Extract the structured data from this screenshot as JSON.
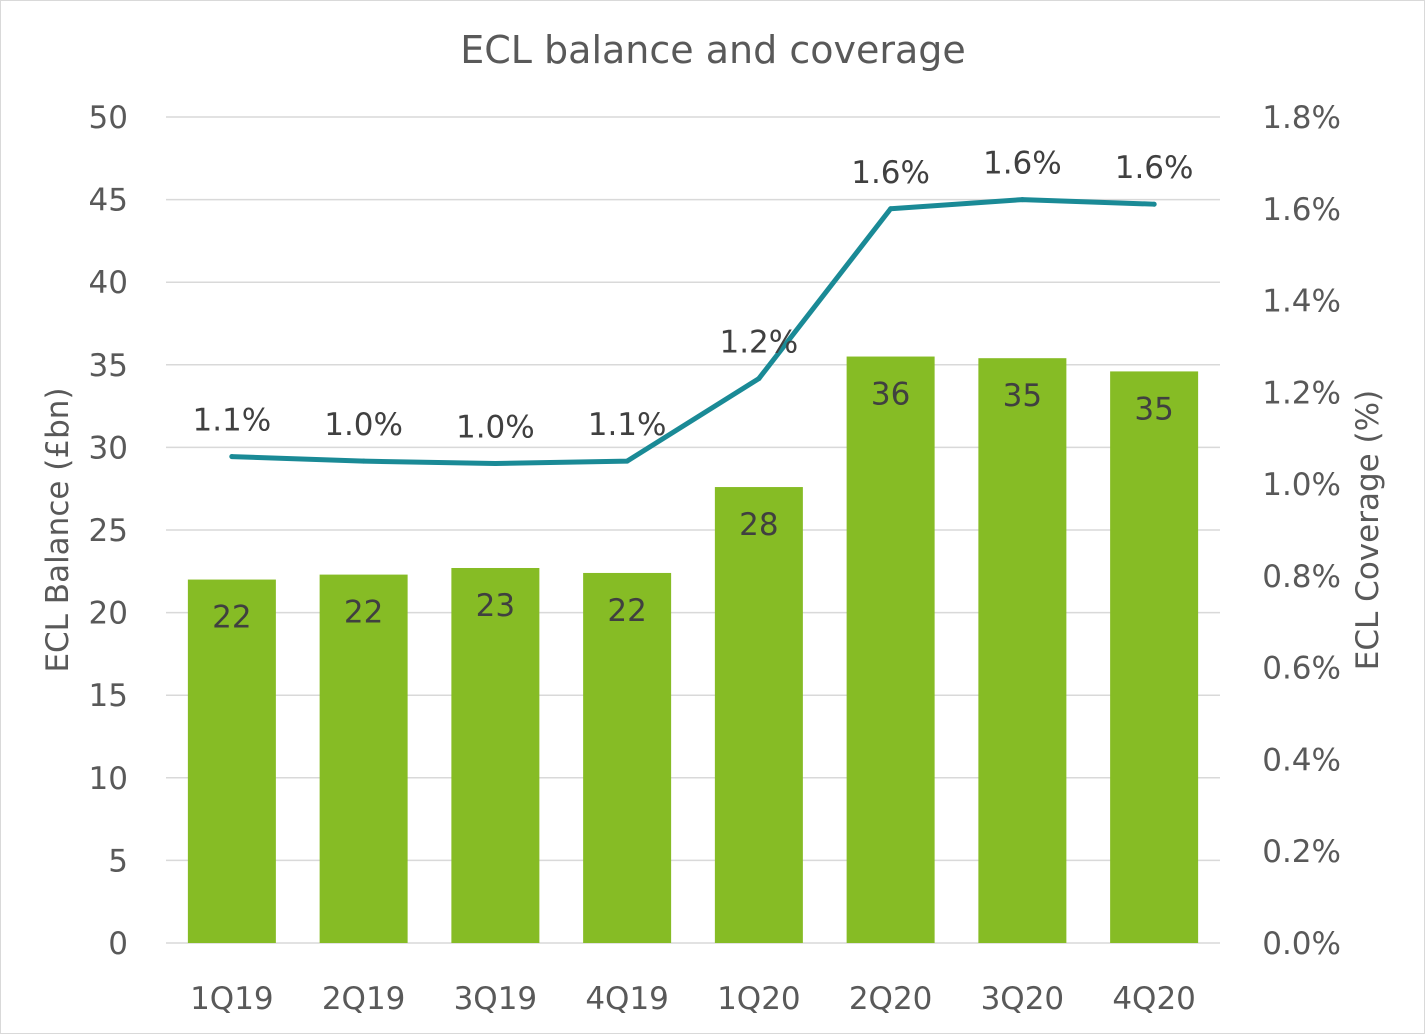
{
  "chart_data": {
    "type": "bar",
    "title": "ECL balance and coverage",
    "categories": [
      "1Q19",
      "2Q19",
      "3Q19",
      "4Q19",
      "1Q20",
      "2Q20",
      "3Q20",
      "4Q20"
    ],
    "series": [
      {
        "kind": "bar",
        "axis": "left",
        "values": [
          22.0,
          22.3,
          22.7,
          22.4,
          27.6,
          35.5,
          35.4,
          34.6
        ],
        "labels": [
          "22",
          "22",
          "23",
          "22",
          "28",
          "36",
          "35",
          "35"
        ],
        "color": "#86bc25"
      },
      {
        "kind": "line",
        "axis": "right",
        "values": [
          1.06,
          1.05,
          1.045,
          1.05,
          1.23,
          1.6,
          1.62,
          1.61
        ],
        "labels": [
          "1.1%",
          "1.0%",
          "1.0%",
          "1.1%",
          "1.2%",
          "1.6%",
          "1.6%",
          "1.6%"
        ],
        "color": "#1a8a96"
      }
    ],
    "y_left": {
      "label": "ECL Balance (£bn)",
      "range": [
        0,
        50
      ],
      "ticks": [
        "0",
        "5",
        "10",
        "15",
        "20",
        "25",
        "30",
        "35",
        "40",
        "45",
        "50"
      ]
    },
    "y_right": {
      "label": "ECL Coverage (%)",
      "range": [
        0,
        1.8
      ],
      "ticks": [
        "0.0%",
        "0.2%",
        "0.4%",
        "0.6%",
        "0.8%",
        "1.0%",
        "1.2%",
        "1.4%",
        "1.6%",
        "1.8%"
      ]
    },
    "grid": true,
    "legend": "none",
    "gridline_color": "#d9d9d9",
    "text_color": "#595959"
  }
}
